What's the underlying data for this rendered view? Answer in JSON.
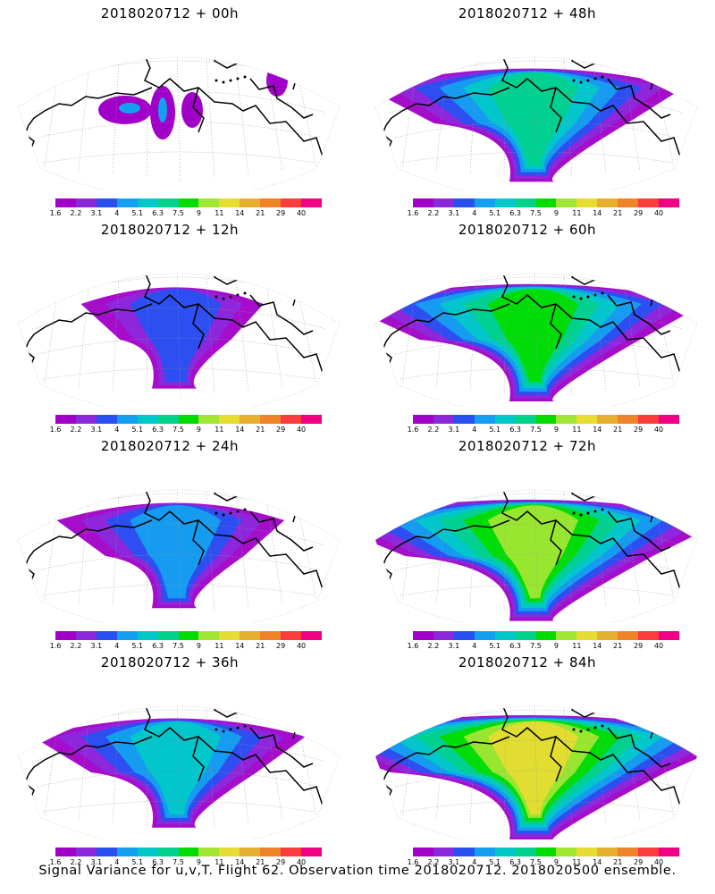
{
  "panels": [
    {
      "title": "2018020712 + 00h",
      "level": 0
    },
    {
      "title": "2018020712 + 48h",
      "level": 4
    },
    {
      "title": "2018020712 + 12h",
      "level": 1
    },
    {
      "title": "2018020712 + 60h",
      "level": 5
    },
    {
      "title": "2018020712 + 24h",
      "level": 2
    },
    {
      "title": "2018020712 + 72h",
      "level": 6
    },
    {
      "title": "2018020712 + 36h",
      "level": 3
    },
    {
      "title": "2018020712 + 84h",
      "level": 7
    }
  ],
  "colorbar": {
    "colors": [
      "#a000c8",
      "#8c28dc",
      "#2850f0",
      "#14a0f0",
      "#00c8c8",
      "#00d28c",
      "#00dc00",
      "#a0e632",
      "#e6dc32",
      "#e6af2d",
      "#f08228",
      "#fa3c3c",
      "#f00082"
    ],
    "labels": [
      "1.6",
      "2.2",
      "3.1",
      "4",
      "5.1",
      "6.3",
      "7.5",
      "9",
      "11",
      "14",
      "21",
      "29",
      "40"
    ]
  },
  "footer": "Signal Variance for u,v,T. Flight 62. Observation time 2018020712. 2018020500 ensemble."
}
